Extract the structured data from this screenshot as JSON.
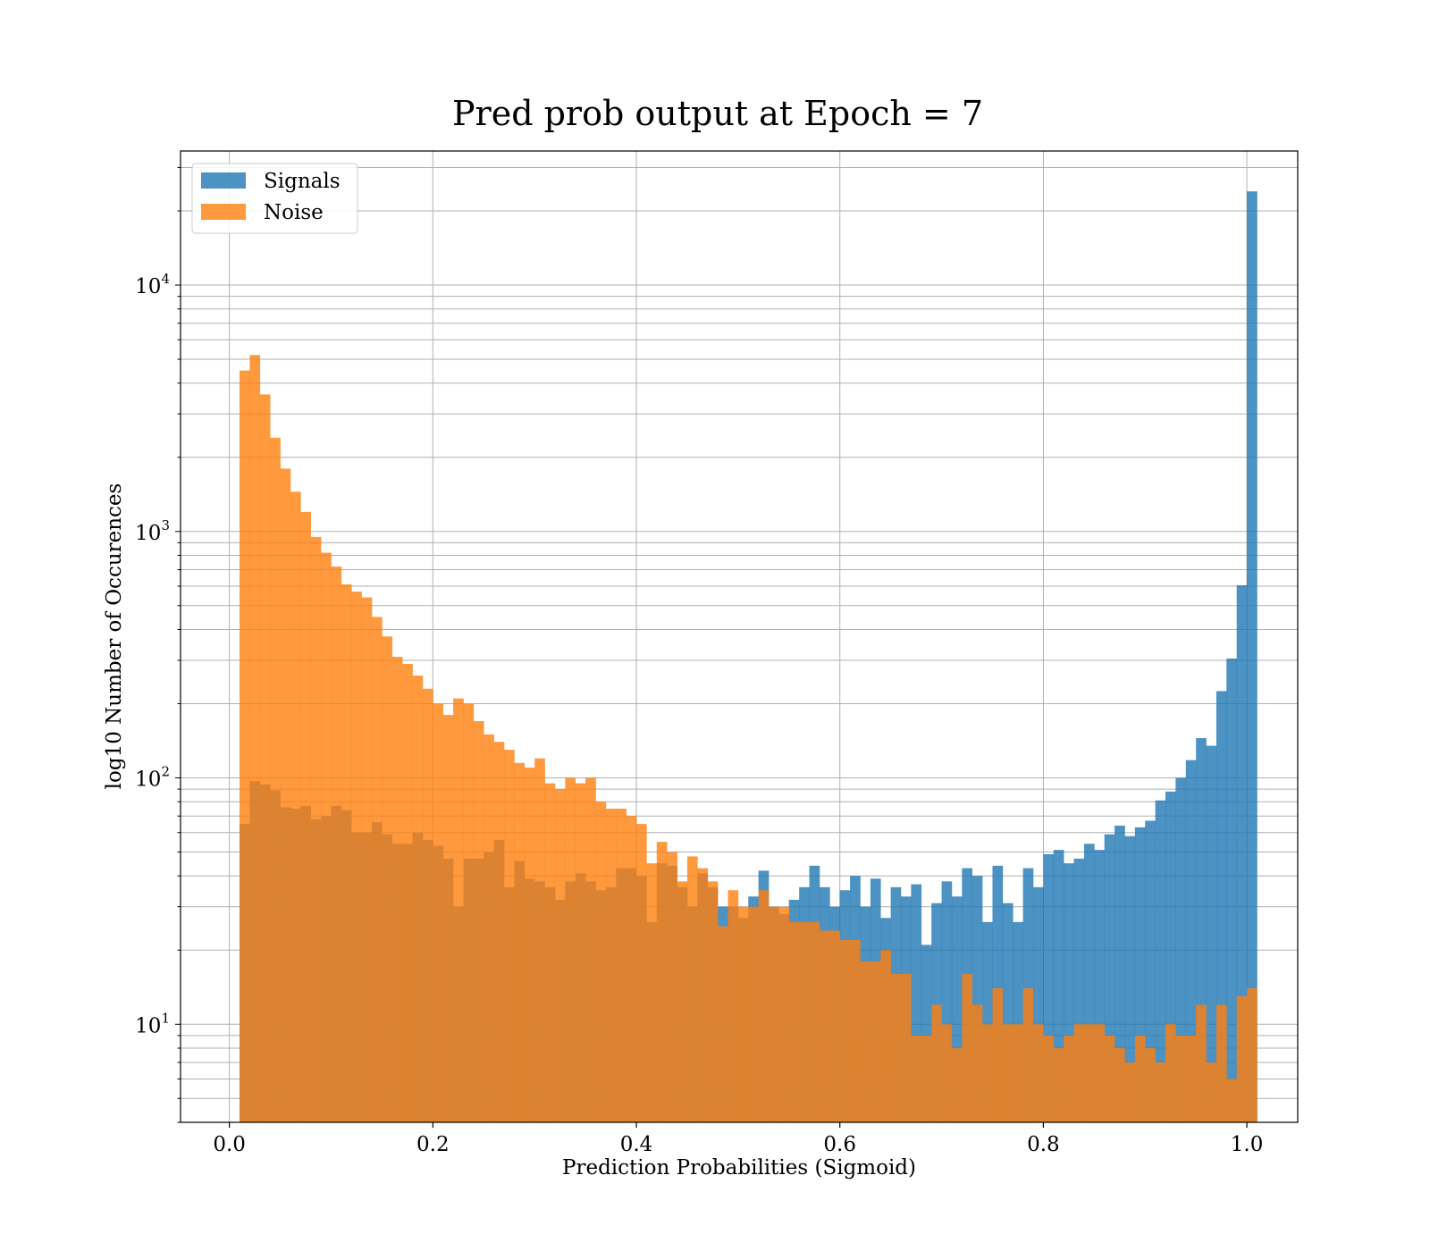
{
  "chart_data": {
    "type": "bar",
    "title": "Pred prob output at Epoch = 7",
    "xlabel": "Prediction Probabilities (Sigmoid)",
    "ylabel": "log10 Number of Occurences",
    "xlim": [
      -0.048,
      1.05
    ],
    "ylim": [
      4,
      35000
    ],
    "yscale": "log",
    "grid": true,
    "legend_position": "upper-left",
    "x_ticks": [
      "0.0",
      "0.2",
      "0.4",
      "0.6",
      "0.8",
      "1.0"
    ],
    "y_ticks": [
      {
        "base": "10",
        "exp": "1",
        "value": 10
      },
      {
        "base": "10",
        "exp": "2",
        "value": 100
      },
      {
        "base": "10",
        "exp": "3",
        "value": 1000
      },
      {
        "base": "10",
        "exp": "4",
        "value": 10000
      }
    ],
    "bin_start": 0.0,
    "bin_width": 0.01,
    "series": [
      {
        "name": "Signals",
        "color": "#1f77b4",
        "opacity": 0.8,
        "values": [
          0,
          65,
          97,
          94,
          89,
          76,
          75,
          77,
          68,
          70,
          77,
          74,
          60,
          60,
          66,
          59,
          54,
          54,
          60,
          56,
          53,
          47,
          30,
          47,
          47,
          50,
          56,
          36,
          46,
          39,
          38,
          36,
          32,
          38,
          41,
          38,
          35,
          36,
          43,
          43,
          40,
          26,
          45,
          44,
          36,
          30,
          41,
          36,
          30,
          30,
          27,
          33,
          42,
          30,
          28,
          32,
          36,
          44,
          36,
          30,
          35,
          40,
          30,
          39,
          27,
          36,
          33,
          37,
          21,
          31,
          38,
          33,
          43,
          40,
          26,
          44,
          31,
          26,
          43,
          36,
          49,
          51,
          45,
          47,
          54,
          51,
          59,
          64,
          58,
          63,
          67,
          81,
          88,
          100,
          118,
          145,
          135,
          225,
          305,
          605,
          24000
        ]
      },
      {
        "name": "Noise",
        "color": "#ff7f0e",
        "opacity": 0.8,
        "values": [
          0,
          4500,
          5200,
          3600,
          2400,
          1800,
          1450,
          1200,
          950,
          820,
          720,
          610,
          570,
          540,
          450,
          375,
          310,
          290,
          260,
          230,
          200,
          180,
          210,
          200,
          170,
          150,
          140,
          130,
          115,
          110,
          120,
          95,
          90,
          100,
          95,
          100,
          80,
          75,
          75,
          70,
          65,
          45,
          55,
          50,
          38,
          48,
          43,
          38,
          25,
          35,
          30,
          30,
          35,
          30,
          30,
          26,
          26,
          26,
          24,
          24,
          22,
          22,
          18,
          18,
          20,
          16,
          16,
          9,
          9,
          12,
          10,
          8,
          16,
          12,
          10,
          14,
          10,
          10,
          14,
          10,
          9,
          8,
          9,
          10,
          10,
          10,
          9,
          8,
          7,
          9,
          8,
          7,
          10,
          9,
          9,
          12,
          7,
          12,
          6,
          13,
          14
        ]
      }
    ]
  }
}
